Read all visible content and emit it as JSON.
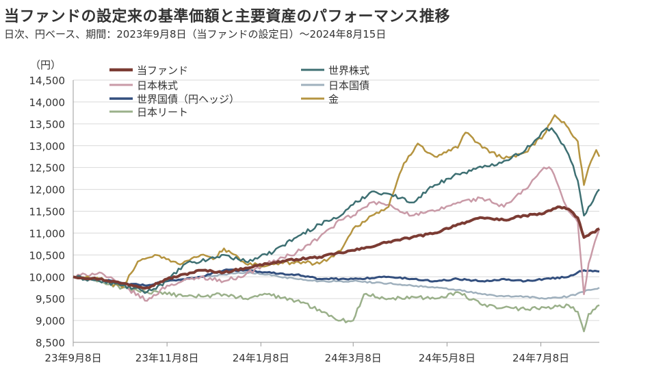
{
  "header": {
    "title": "当ファンドの設定来の基準価額と主要資産のパフォーマンス推移",
    "subtitle": "日次、円ベース、期間：2023年9月8日（当ファンドの設定日）～2024年8月15日"
  },
  "chart_data": {
    "type": "line",
    "unit_label": "（円）",
    "ylim": [
      8500,
      14500
    ],
    "yticks": [
      8500,
      9000,
      9500,
      10000,
      10500,
      11000,
      11500,
      12000,
      12500,
      13000,
      13500,
      14000,
      14500
    ],
    "ytick_labels": [
      "8,500",
      "9,000",
      "9,500",
      "10,000",
      "10,500",
      "11,000",
      "11,500",
      "12,000",
      "12,500",
      "13,000",
      "13,500",
      "14,000",
      "14,500"
    ],
    "xlim": [
      "2023-09-08",
      "2024-08-15"
    ],
    "xticks": [
      "2023-09-08",
      "2023-11-08",
      "2024-01-08",
      "2024-03-08",
      "2024-05-08",
      "2024-07-08"
    ],
    "xtick_labels": [
      "23年9月8日",
      "23年11月8日",
      "24年1月8日",
      "24年3月8日",
      "24年5月8日",
      "24年7月8日"
    ],
    "grid": "horizontal",
    "legend_position": "top-left",
    "series": [
      {
        "name": "当ファンド",
        "color": "#7b3b33",
        "width": 4,
        "points": [
          [
            "2023-09-08",
            10000
          ],
          [
            "2023-09-25",
            9950
          ],
          [
            "2023-10-10",
            9850
          ],
          [
            "2023-10-26",
            9750
          ],
          [
            "2023-11-08",
            9950
          ],
          [
            "2023-11-30",
            10150
          ],
          [
            "2023-12-15",
            10100
          ],
          [
            "2023-12-29",
            10200
          ],
          [
            "2024-01-12",
            10300
          ],
          [
            "2024-01-31",
            10400
          ],
          [
            "2024-02-15",
            10450
          ],
          [
            "2024-02-29",
            10550
          ],
          [
            "2024-03-15",
            10650
          ],
          [
            "2024-03-31",
            10800
          ],
          [
            "2024-04-15",
            10900
          ],
          [
            "2024-04-30",
            11000
          ],
          [
            "2024-05-15",
            11200
          ],
          [
            "2024-05-31",
            11350
          ],
          [
            "2024-06-14",
            11300
          ],
          [
            "2024-06-28",
            11400
          ],
          [
            "2024-07-10",
            11450
          ],
          [
            "2024-07-19",
            11600
          ],
          [
            "2024-07-26",
            11550
          ],
          [
            "2024-08-01",
            11350
          ],
          [
            "2024-08-05",
            10900
          ],
          [
            "2024-08-08",
            10950
          ],
          [
            "2024-08-15",
            11100
          ]
        ]
      },
      {
        "name": "世界株式",
        "color": "#3d6f72",
        "width": 2.5,
        "points": [
          [
            "2023-09-08",
            10000
          ],
          [
            "2023-09-25",
            9900
          ],
          [
            "2023-10-10",
            9800
          ],
          [
            "2023-10-26",
            9650
          ],
          [
            "2023-11-08",
            9900
          ],
          [
            "2023-11-20",
            10300
          ],
          [
            "2023-11-30",
            10350
          ],
          [
            "2023-12-15",
            10500
          ],
          [
            "2023-12-29",
            10350
          ],
          [
            "2024-01-12",
            10500
          ],
          [
            "2024-01-31",
            10900
          ],
          [
            "2024-02-15",
            11200
          ],
          [
            "2024-02-29",
            11400
          ],
          [
            "2024-03-08",
            11650
          ],
          [
            "2024-03-20",
            11950
          ],
          [
            "2024-03-31",
            11900
          ],
          [
            "2024-04-15",
            11700
          ],
          [
            "2024-04-30",
            12100
          ],
          [
            "2024-05-15",
            12350
          ],
          [
            "2024-05-31",
            12500
          ],
          [
            "2024-06-14",
            12650
          ],
          [
            "2024-06-28",
            12900
          ],
          [
            "2024-07-10",
            13350
          ],
          [
            "2024-07-15",
            13400
          ],
          [
            "2024-07-26",
            12800
          ],
          [
            "2024-08-01",
            12200
          ],
          [
            "2024-08-05",
            11400
          ],
          [
            "2024-08-08",
            11600
          ],
          [
            "2024-08-15",
            12000
          ]
        ]
      },
      {
        "name": "日本株式",
        "color": "#c99aa7",
        "width": 2.5,
        "points": [
          [
            "2023-09-08",
            10000
          ],
          [
            "2023-09-25",
            10100
          ],
          [
            "2023-10-10",
            9800
          ],
          [
            "2023-10-26",
            9450
          ],
          [
            "2023-11-08",
            9800
          ],
          [
            "2023-11-30",
            10000
          ],
          [
            "2023-12-15",
            9900
          ],
          [
            "2023-12-29",
            10050
          ],
          [
            "2024-01-12",
            10300
          ],
          [
            "2024-01-31",
            10550
          ],
          [
            "2024-02-15",
            10900
          ],
          [
            "2024-02-29",
            11300
          ],
          [
            "2024-03-08",
            11400
          ],
          [
            "2024-03-20",
            11700
          ],
          [
            "2024-03-31",
            11650
          ],
          [
            "2024-04-15",
            11400
          ],
          [
            "2024-04-30",
            11500
          ],
          [
            "2024-05-15",
            11700
          ],
          [
            "2024-05-31",
            11800
          ],
          [
            "2024-06-14",
            11600
          ],
          [
            "2024-06-28",
            12000
          ],
          [
            "2024-07-10",
            12500
          ],
          [
            "2024-07-15",
            12450
          ],
          [
            "2024-07-26",
            11500
          ],
          [
            "2024-08-01",
            11250
          ],
          [
            "2024-08-05",
            9600
          ],
          [
            "2024-08-08",
            10300
          ],
          [
            "2024-08-15",
            11100
          ]
        ]
      },
      {
        "name": "日本国債",
        "color": "#9fb0bd",
        "width": 2.5,
        "points": [
          [
            "2023-09-08",
            10000
          ],
          [
            "2023-09-25",
            9900
          ],
          [
            "2023-10-10",
            9850
          ],
          [
            "2023-10-26",
            9800
          ],
          [
            "2023-11-08",
            9900
          ],
          [
            "2023-11-30",
            10000
          ],
          [
            "2023-12-15",
            10050
          ],
          [
            "2023-12-29",
            10100
          ],
          [
            "2024-01-12",
            10050
          ],
          [
            "2024-01-31",
            9950
          ],
          [
            "2024-02-15",
            9900
          ],
          [
            "2024-02-29",
            9900
          ],
          [
            "2024-03-08",
            9900
          ],
          [
            "2024-03-31",
            9850
          ],
          [
            "2024-04-15",
            9800
          ],
          [
            "2024-04-30",
            9750
          ],
          [
            "2024-05-15",
            9700
          ],
          [
            "2024-05-31",
            9600
          ],
          [
            "2024-06-14",
            9550
          ],
          [
            "2024-06-28",
            9550
          ],
          [
            "2024-07-10",
            9500
          ],
          [
            "2024-07-26",
            9550
          ],
          [
            "2024-08-05",
            9650
          ],
          [
            "2024-08-08",
            9700
          ],
          [
            "2024-08-15",
            9750
          ]
        ]
      },
      {
        "name": "世界国債（円ヘッジ）",
        "color": "#334f7e",
        "width": 3,
        "points": [
          [
            "2023-09-08",
            10000
          ],
          [
            "2023-09-25",
            9950
          ],
          [
            "2023-10-10",
            9850
          ],
          [
            "2023-10-26",
            9800
          ],
          [
            "2023-11-08",
            9900
          ],
          [
            "2023-11-30",
            10000
          ],
          [
            "2023-12-15",
            10150
          ],
          [
            "2023-12-29",
            10150
          ],
          [
            "2024-01-12",
            10100
          ],
          [
            "2024-01-31",
            10050
          ],
          [
            "2024-02-15",
            9950
          ],
          [
            "2024-02-29",
            9950
          ],
          [
            "2024-03-08",
            9950
          ],
          [
            "2024-03-31",
            10000
          ],
          [
            "2024-04-15",
            9950
          ],
          [
            "2024-04-30",
            9900
          ],
          [
            "2024-05-15",
            9950
          ],
          [
            "2024-05-31",
            9900
          ],
          [
            "2024-06-14",
            9950
          ],
          [
            "2024-06-28",
            9900
          ],
          [
            "2024-07-10",
            9950
          ],
          [
            "2024-07-26",
            10000
          ],
          [
            "2024-08-01",
            10100
          ],
          [
            "2024-08-05",
            10150
          ],
          [
            "2024-08-15",
            10120
          ]
        ]
      },
      {
        "name": "金",
        "color": "#b59440",
        "width": 2.5,
        "points": [
          [
            "2023-09-08",
            10000
          ],
          [
            "2023-09-25",
            9950
          ],
          [
            "2023-10-10",
            9750
          ],
          [
            "2023-10-20",
            10350
          ],
          [
            "2023-10-31",
            10500
          ],
          [
            "2023-11-15",
            10300
          ],
          [
            "2023-11-30",
            10500
          ],
          [
            "2023-12-08",
            10400
          ],
          [
            "2023-12-15",
            10650
          ],
          [
            "2023-12-29",
            10300
          ],
          [
            "2024-01-12",
            10250
          ],
          [
            "2024-01-31",
            10350
          ],
          [
            "2024-02-15",
            10300
          ],
          [
            "2024-02-29",
            10600
          ],
          [
            "2024-03-08",
            11100
          ],
          [
            "2024-03-20",
            11400
          ],
          [
            "2024-03-31",
            11600
          ],
          [
            "2024-04-10",
            12600
          ],
          [
            "2024-04-19",
            13050
          ],
          [
            "2024-04-30",
            12750
          ],
          [
            "2024-05-15",
            12950
          ],
          [
            "2024-05-20",
            13300
          ],
          [
            "2024-05-31",
            12950
          ],
          [
            "2024-06-14",
            12700
          ],
          [
            "2024-06-28",
            12850
          ],
          [
            "2024-07-10",
            13250
          ],
          [
            "2024-07-17",
            13700
          ],
          [
            "2024-07-26",
            13400
          ],
          [
            "2024-08-01",
            13100
          ],
          [
            "2024-08-05",
            12100
          ],
          [
            "2024-08-08",
            12500
          ],
          [
            "2024-08-13",
            12900
          ],
          [
            "2024-08-15",
            12750
          ]
        ]
      },
      {
        "name": "日本リート",
        "color": "#9ab08a",
        "width": 2.5,
        "points": [
          [
            "2023-09-08",
            10000
          ],
          [
            "2023-09-25",
            9900
          ],
          [
            "2023-10-10",
            9750
          ],
          [
            "2023-10-26",
            9650
          ],
          [
            "2023-11-08",
            9600
          ],
          [
            "2023-11-30",
            9550
          ],
          [
            "2023-12-15",
            9600
          ],
          [
            "2023-12-29",
            9500
          ],
          [
            "2024-01-12",
            9600
          ],
          [
            "2024-01-31",
            9450
          ],
          [
            "2024-02-15",
            9250
          ],
          [
            "2024-02-29",
            9000
          ],
          [
            "2024-03-08",
            9000
          ],
          [
            "2024-03-15",
            9600
          ],
          [
            "2024-03-31",
            9500
          ],
          [
            "2024-04-15",
            9550
          ],
          [
            "2024-04-30",
            9500
          ],
          [
            "2024-05-15",
            9650
          ],
          [
            "2024-05-31",
            9350
          ],
          [
            "2024-06-14",
            9300
          ],
          [
            "2024-06-28",
            9250
          ],
          [
            "2024-07-10",
            9300
          ],
          [
            "2024-07-26",
            9350
          ],
          [
            "2024-08-01",
            9200
          ],
          [
            "2024-08-05",
            8750
          ],
          [
            "2024-08-08",
            9150
          ],
          [
            "2024-08-15",
            9350
          ]
        ]
      }
    ]
  }
}
